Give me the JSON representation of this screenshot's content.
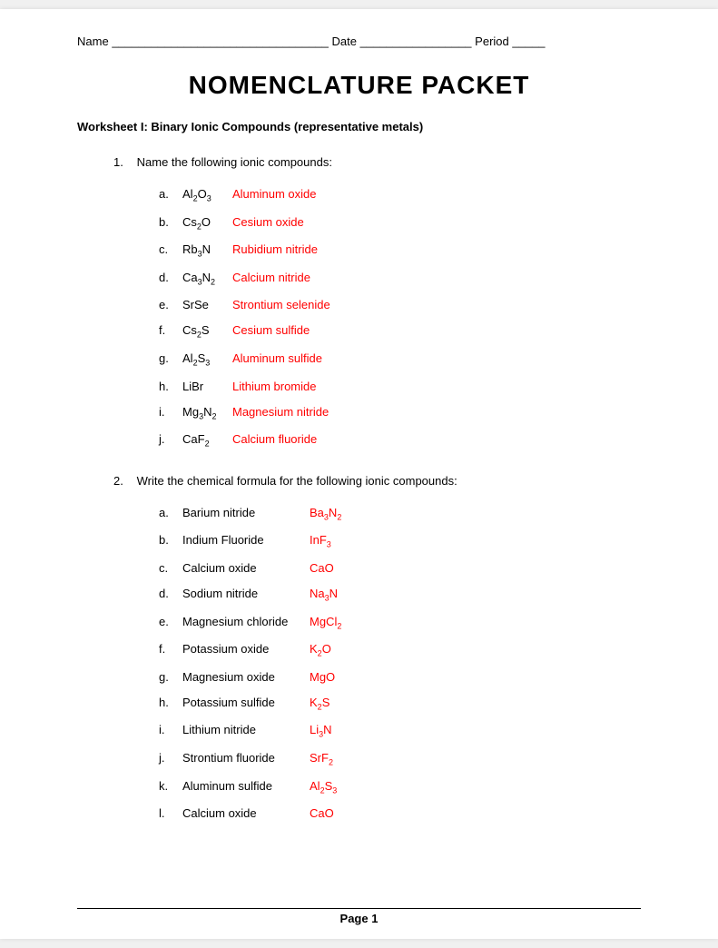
{
  "header": {
    "name_label": "Name",
    "name_blank": "_________________________________",
    "date_label": "Date",
    "date_blank": "_________________",
    "period_label": "Period",
    "period_blank": "_____"
  },
  "title": "NOMENCLATURE PACKET",
  "worksheet_title": "Worksheet I: Binary Ionic Compounds (representative metals)",
  "question1": {
    "num": "1.",
    "text": "Name the following ionic compounds:",
    "items": [
      {
        "letter": "a.",
        "formula_html": "Al<sub>2</sub>O<sub>3</sub>",
        "answer": "Aluminum oxide"
      },
      {
        "letter": "b.",
        "formula_html": "Cs<sub>2</sub>O",
        "answer": "Cesium oxide"
      },
      {
        "letter": "c.",
        "formula_html": "Rb<sub>3</sub>N",
        "answer": "Rubidium nitride"
      },
      {
        "letter": "d.",
        "formula_html": "Ca<sub>3</sub>N<sub>2</sub>",
        "answer": "Calcium nitride"
      },
      {
        "letter": "e.",
        "formula_html": "SrSe",
        "answer": "Strontium selenide"
      },
      {
        "letter": "f.",
        "formula_html": "Cs<sub>2</sub>S",
        "answer": "Cesium sulfide"
      },
      {
        "letter": "g.",
        "formula_html": "Al<sub>2</sub>S<sub>3</sub>",
        "answer": "Aluminum sulfide"
      },
      {
        "letter": "h.",
        "formula_html": "LiBr",
        "answer": "Lithium bromide"
      },
      {
        "letter": "i.",
        "formula_html": "Mg<sub>3</sub>N<sub>2</sub>",
        "answer": "Magnesium nitride"
      },
      {
        "letter": "j.",
        "formula_html": "CaF<sub>2</sub>",
        "answer": "Calcium fluoride"
      }
    ]
  },
  "question2": {
    "num": "2.",
    "text": "Write the chemical formula for the following ionic compounds:",
    "items": [
      {
        "letter": "a.",
        "name": "Barium nitride",
        "answer_html": "Ba<sub>3</sub>N<sub>2</sub>"
      },
      {
        "letter": "b.",
        "name": "Indium Fluoride",
        "answer_html": "InF<sub>3</sub>"
      },
      {
        "letter": "c.",
        "name": "Calcium oxide",
        "answer_html": "CaO"
      },
      {
        "letter": "d.",
        "name": "Sodium nitride",
        "answer_html": "Na<sub>3</sub>N"
      },
      {
        "letter": "e.",
        "name": "Magnesium chloride",
        "answer_html": "MgCl<sub>2</sub>"
      },
      {
        "letter": "f.",
        "name": "Potassium oxide",
        "answer_html": "K<sub>2</sub>O"
      },
      {
        "letter": "g.",
        "name": "Magnesium oxide",
        "answer_html": "MgO"
      },
      {
        "letter": "h.",
        "name": "Potassium sulfide",
        "answer_html": "K<sub>2</sub>S"
      },
      {
        "letter": "i.",
        "name": "Lithium nitride",
        "answer_html": "Li<sub>3</sub>N"
      },
      {
        "letter": "j.",
        "name": "Strontium fluoride",
        "answer_html": "SrF<sub>2</sub>"
      },
      {
        "letter": "k.",
        "name": "Aluminum sulfide",
        "answer_html": "Al<sub>2</sub>S<sub>3</sub>"
      },
      {
        "letter": "l.",
        "name": "Calcium oxide",
        "answer_html": "CaO"
      }
    ]
  },
  "footer": "Page 1"
}
